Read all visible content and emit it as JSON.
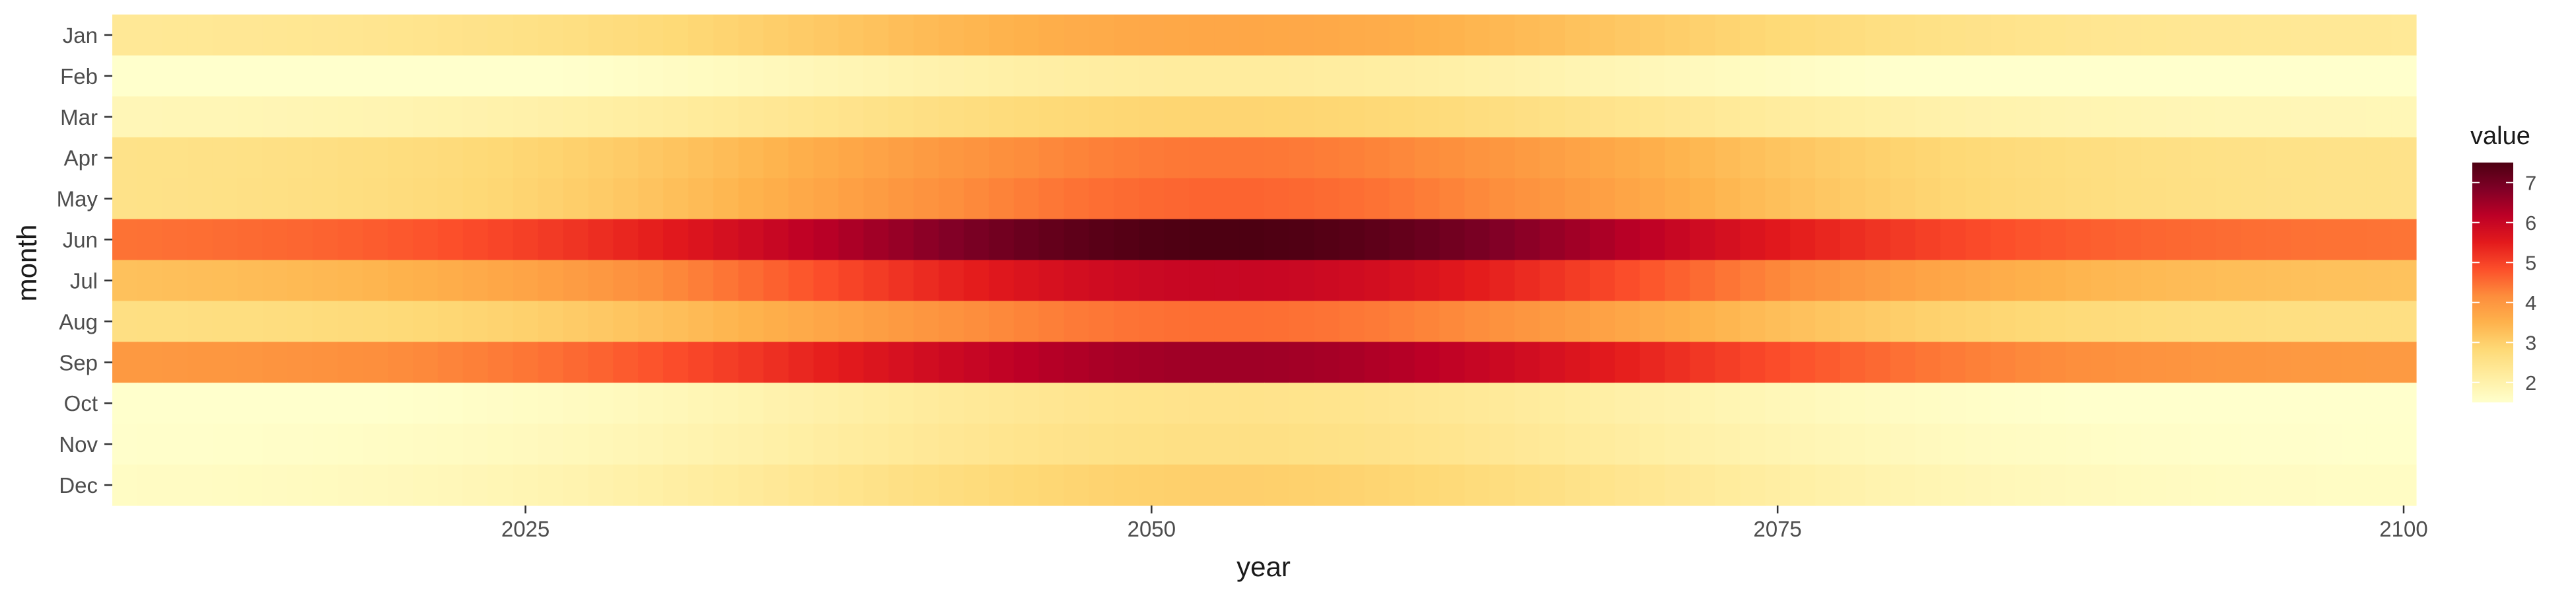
{
  "chart_data": {
    "type": "heatmap",
    "xlabel": "year",
    "ylabel": "month",
    "x_range": [
      2009,
      2100
    ],
    "x_ticks": [
      "2025",
      "2050",
      "2075",
      "2100"
    ],
    "months": [
      "Jan",
      "Feb",
      "Mar",
      "Apr",
      "May",
      "Jun",
      "Jul",
      "Aug",
      "Sep",
      "Oct",
      "Nov",
      "Dec"
    ],
    "legend": {
      "title": "value",
      "position": "right",
      "ticks": [
        "2",
        "3",
        "4",
        "5",
        "6",
        "7"
      ],
      "range": [
        1.5,
        7.5
      ]
    },
    "colorscale": [
      "#ffffcc",
      "#ffeda0",
      "#fed976",
      "#feb24c",
      "#fd8d3c",
      "#fc4e2a",
      "#e31a1c",
      "#bd0026",
      "#800026",
      "#4d0012"
    ],
    "grid": false,
    "value_model": {
      "description": "value(month, year) = base + amp * exp(-((year - 2053)/22)^2)",
      "center_year": 2053,
      "width_years": 22,
      "monthly": [
        {
          "month": "Jan",
          "base": 2.3,
          "amp": 1.4
        },
        {
          "month": "Feb",
          "base": 1.3,
          "amp": 0.9
        },
        {
          "month": "Mar",
          "base": 1.8,
          "amp": 1.1
        },
        {
          "month": "Apr",
          "base": 2.5,
          "amp": 1.9
        },
        {
          "month": "May",
          "base": 2.5,
          "amp": 2.1
        },
        {
          "month": "Jun",
          "base": 4.4,
          "amp": 3.1
        },
        {
          "month": "Jul",
          "base": 3.2,
          "amp": 2.8
        },
        {
          "month": "Aug",
          "base": 2.6,
          "amp": 1.9
        },
        {
          "month": "Sep",
          "base": 3.9,
          "amp": 2.6
        },
        {
          "month": "Oct",
          "base": 1.4,
          "amp": 1.1
        },
        {
          "month": "Nov",
          "base": 1.5,
          "amp": 1.1
        },
        {
          "month": "Dec",
          "base": 1.6,
          "amp": 1.4
        }
      ]
    }
  }
}
